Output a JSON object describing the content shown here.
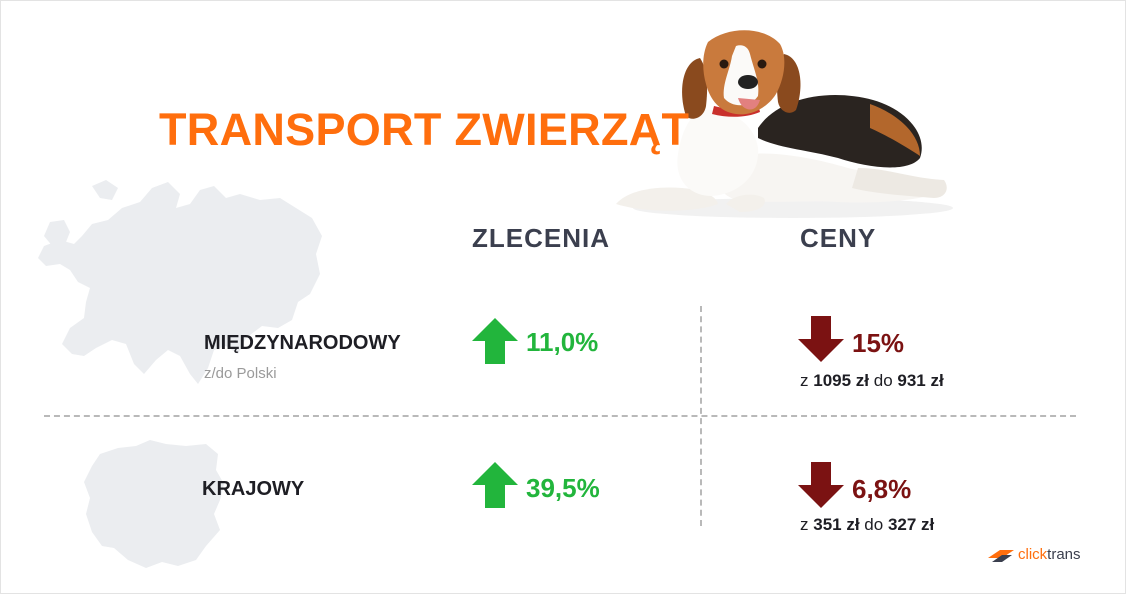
{
  "title": "TRANSPORT ZWIERZĄT",
  "columns": {
    "orders": "ZLECENIA",
    "prices": "CENY"
  },
  "rows": [
    {
      "label": "MIĘDZYNARODOWY",
      "sublabel": "z/do Polski",
      "orders_change": "11,0%",
      "orders_direction": "up",
      "price_change": "15%",
      "price_direction": "down",
      "price_from_prefix": "z",
      "price_from": "1095 zł",
      "price_connector": "do",
      "price_to": "931 zł"
    },
    {
      "label": "KRAJOWY",
      "orders_change": "39,5%",
      "orders_direction": "up",
      "price_change": "6,8%",
      "price_direction": "down",
      "price_from_prefix": "z",
      "price_from": "351 zł",
      "price_connector": "do",
      "price_to": "327 zł"
    }
  ],
  "brand": {
    "name_part1": "click",
    "name_part2": "trans",
    "logo_icon": "clicktrans-logo-icon"
  },
  "icons": {
    "up": "arrow-up-icon",
    "down": "arrow-down-icon"
  },
  "colors": {
    "title": "#ff6e0d",
    "header": "#3b3f4e",
    "increase": "#22b53c",
    "decrease": "#7b1212",
    "map": "#ebedf0"
  }
}
